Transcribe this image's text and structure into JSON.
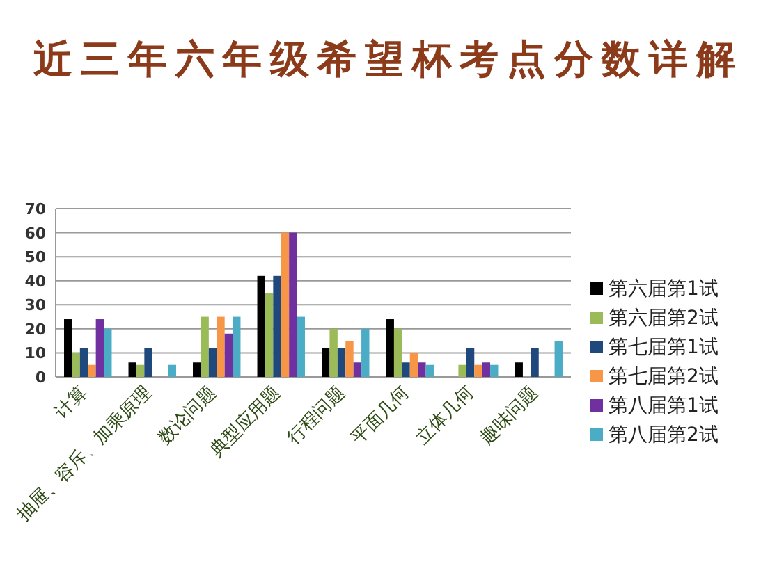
{
  "chart_data": {
    "type": "bar",
    "title": "近三年六年级希望杯考点分数详解",
    "categories": [
      "计算",
      "抽屉、容斥、加乘原理",
      "数论问题",
      "典型应用题",
      "行程问题",
      "平面几何",
      "立体几何",
      "趣味问题"
    ],
    "series": [
      {
        "name": "第六届第1试",
        "color": "#000000",
        "values": [
          24,
          6,
          6,
          42,
          12,
          24,
          0,
          6
        ]
      },
      {
        "name": "第六届第2试",
        "color": "#9bbb59",
        "values": [
          10,
          5,
          25,
          35,
          20,
          20,
          5,
          0
        ]
      },
      {
        "name": "第七届第1试",
        "color": "#1f497d",
        "values": [
          12,
          12,
          12,
          42,
          12,
          6,
          12,
          12
        ]
      },
      {
        "name": "第七届第2试",
        "color": "#f79646",
        "values": [
          5,
          0,
          25,
          60,
          15,
          10,
          5,
          0
        ]
      },
      {
        "name": "第八届第1试",
        "color": "#7030a0",
        "values": [
          24,
          0,
          18,
          60,
          6,
          6,
          6,
          0
        ]
      },
      {
        "name": "第八届第2试",
        "color": "#4bacc6",
        "values": [
          20,
          5,
          25,
          25,
          20,
          5,
          5,
          15
        ]
      }
    ],
    "ylim": [
      0,
      70
    ],
    "yticks": [
      0,
      10,
      20,
      30,
      40,
      50,
      60,
      70
    ],
    "grid": "y",
    "legend": "right"
  }
}
